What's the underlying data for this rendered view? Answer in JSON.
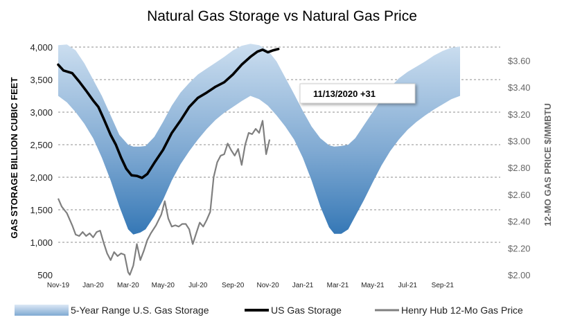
{
  "chart_data": {
    "type": "line",
    "title": "Natural Gas Storage vs Natural Gas Price",
    "ylabel": "GAS STORAGE BILLION CUBIC FEET",
    "ylabel_right": "12-MO GAS PRICE $/MMBTU",
    "ylim": [
      500,
      4000
    ],
    "yticks": [
      "4,000",
      "3,500",
      "3,000",
      "2,500",
      "2,000",
      "1,500",
      "1,000",
      "500"
    ],
    "ylim_right": [
      2.0,
      3.7
    ],
    "yticks_right": [
      "$3.60",
      "$3.40",
      "$3.20",
      "$3.00",
      "$2.80",
      "$2.60",
      "$2.40",
      "$2.20",
      "$2.00"
    ],
    "x_tick_labels": [
      "Nov-19",
      "Jan-20",
      "Mar-20",
      "May-20",
      "Jul-20",
      "Sep-20",
      "Nov-20",
      "Jan-21",
      "Mar-21",
      "May-21",
      "Jul-21",
      "Sep-21"
    ],
    "x_months": [
      0,
      2,
      4,
      6,
      8,
      10,
      12,
      14,
      16,
      18,
      20,
      22
    ],
    "x_max": 25.3,
    "grid": "horizontal dashed",
    "legend_position": "bottom",
    "annotation": "11/13/2020 +31",
    "series": [
      {
        "name": "5-Year Range U.S. Gas Storage",
        "kind": "range",
        "color_light": "#c9dcee",
        "color_dark": "#2e75b6",
        "points": [
          [
            0,
            4030,
            3250
          ],
          [
            0.5,
            4040,
            3150
          ],
          [
            1,
            3950,
            3000
          ],
          [
            1.5,
            3750,
            2820
          ],
          [
            2,
            3500,
            2600
          ],
          [
            2.5,
            3250,
            2300
          ],
          [
            3,
            2950,
            1950
          ],
          [
            3.5,
            2650,
            1550
          ],
          [
            4,
            2500,
            1200
          ],
          [
            4.3,
            2470,
            1120
          ],
          [
            4.7,
            2470,
            1150
          ],
          [
            5,
            2480,
            1200
          ],
          [
            5.5,
            2620,
            1400
          ],
          [
            6,
            2850,
            1650
          ],
          [
            6.5,
            3100,
            1950
          ],
          [
            7,
            3300,
            2200
          ],
          [
            7.5,
            3450,
            2400
          ],
          [
            8,
            3580,
            2580
          ],
          [
            8.5,
            3670,
            2740
          ],
          [
            9,
            3760,
            2880
          ],
          [
            9.5,
            3850,
            2990
          ],
          [
            10,
            3950,
            3080
          ],
          [
            10.5,
            4020,
            3170
          ],
          [
            11,
            4050,
            3250
          ],
          [
            11.5,
            4030,
            3200
          ],
          [
            12,
            3950,
            3100
          ],
          [
            12.5,
            3780,
            2950
          ],
          [
            13,
            3530,
            2780
          ],
          [
            13.5,
            3280,
            2580
          ],
          [
            14,
            3020,
            2300
          ],
          [
            14.5,
            2780,
            1950
          ],
          [
            15,
            2600,
            1550
          ],
          [
            15.5,
            2490,
            1230
          ],
          [
            15.8,
            2470,
            1130
          ],
          [
            16.2,
            2480,
            1130
          ],
          [
            16.6,
            2500,
            1200
          ],
          [
            17,
            2600,
            1400
          ],
          [
            17.5,
            2800,
            1650
          ],
          [
            18,
            3000,
            1920
          ],
          [
            18.5,
            3200,
            2180
          ],
          [
            19,
            3380,
            2400
          ],
          [
            19.5,
            3520,
            2580
          ],
          [
            20,
            3620,
            2730
          ],
          [
            20.5,
            3700,
            2850
          ],
          [
            21,
            3780,
            2950
          ],
          [
            21.5,
            3870,
            3040
          ],
          [
            22,
            3940,
            3120
          ],
          [
            22.5,
            3990,
            3200
          ],
          [
            23,
            4010,
            3250
          ]
        ]
      },
      {
        "name": "US Gas Storage",
        "kind": "line",
        "color": "#000000",
        "points": [
          [
            0,
            3730
          ],
          [
            0.3,
            3640
          ],
          [
            0.8,
            3600
          ],
          [
            1.2,
            3470
          ],
          [
            1.6,
            3330
          ],
          [
            2.0,
            3180
          ],
          [
            2.3,
            3080
          ],
          [
            2.6,
            2900
          ],
          [
            3.0,
            2650
          ],
          [
            3.3,
            2500
          ],
          [
            3.6,
            2300
          ],
          [
            3.9,
            2130
          ],
          [
            4.2,
            2030
          ],
          [
            4.5,
            2020
          ],
          [
            4.8,
            1990
          ],
          [
            5.1,
            2050
          ],
          [
            5.5,
            2220
          ],
          [
            6.0,
            2420
          ],
          [
            6.5,
            2680
          ],
          [
            7.0,
            2870
          ],
          [
            7.5,
            3080
          ],
          [
            8.0,
            3220
          ],
          [
            8.5,
            3300
          ],
          [
            9.0,
            3390
          ],
          [
            9.5,
            3460
          ],
          [
            10.0,
            3580
          ],
          [
            10.5,
            3730
          ],
          [
            11.0,
            3850
          ],
          [
            11.4,
            3930
          ],
          [
            11.7,
            3960
          ],
          [
            12.0,
            3920
          ],
          [
            12.3,
            3950
          ],
          [
            12.6,
            3970
          ]
        ]
      },
      {
        "name": "Henry Hub 12-Mo Gas Price",
        "kind": "line",
        "axis": "right",
        "color": "#7f7f7f",
        "points": [
          [
            0,
            2.57
          ],
          [
            0.2,
            2.51
          ],
          [
            0.5,
            2.46
          ],
          [
            0.8,
            2.37
          ],
          [
            1.0,
            2.3
          ],
          [
            1.2,
            2.29
          ],
          [
            1.4,
            2.32
          ],
          [
            1.6,
            2.29
          ],
          [
            1.8,
            2.31
          ],
          [
            2.0,
            2.28
          ],
          [
            2.2,
            2.32
          ],
          [
            2.4,
            2.33
          ],
          [
            2.6,
            2.24
          ],
          [
            2.8,
            2.16
          ],
          [
            3.0,
            2.11
          ],
          [
            3.2,
            2.17
          ],
          [
            3.4,
            2.14
          ],
          [
            3.6,
            2.16
          ],
          [
            3.8,
            2.15
          ],
          [
            4.0,
            2.02
          ],
          [
            4.1,
            2.0
          ],
          [
            4.3,
            2.07
          ],
          [
            4.5,
            2.23
          ],
          [
            4.7,
            2.11
          ],
          [
            4.9,
            2.18
          ],
          [
            5.1,
            2.26
          ],
          [
            5.3,
            2.31
          ],
          [
            5.6,
            2.37
          ],
          [
            5.9,
            2.45
          ],
          [
            6.1,
            2.55
          ],
          [
            6.3,
            2.42
          ],
          [
            6.5,
            2.36
          ],
          [
            6.7,
            2.37
          ],
          [
            6.9,
            2.36
          ],
          [
            7.1,
            2.38
          ],
          [
            7.3,
            2.38
          ],
          [
            7.5,
            2.34
          ],
          [
            7.7,
            2.23
          ],
          [
            7.9,
            2.31
          ],
          [
            8.1,
            2.39
          ],
          [
            8.3,
            2.36
          ],
          [
            8.5,
            2.41
          ],
          [
            8.7,
            2.47
          ],
          [
            8.9,
            2.73
          ],
          [
            9.1,
            2.84
          ],
          [
            9.3,
            2.89
          ],
          [
            9.5,
            2.9
          ],
          [
            9.7,
            2.98
          ],
          [
            9.9,
            2.93
          ],
          [
            10.1,
            2.89
          ],
          [
            10.3,
            2.94
          ],
          [
            10.5,
            2.82
          ],
          [
            10.7,
            2.97
          ],
          [
            10.9,
            3.06
          ],
          [
            11.1,
            3.05
          ],
          [
            11.3,
            3.09
          ],
          [
            11.5,
            3.06
          ],
          [
            11.7,
            3.15
          ],
          [
            11.9,
            2.9
          ],
          [
            12.1,
            3.01
          ]
        ]
      }
    ]
  }
}
